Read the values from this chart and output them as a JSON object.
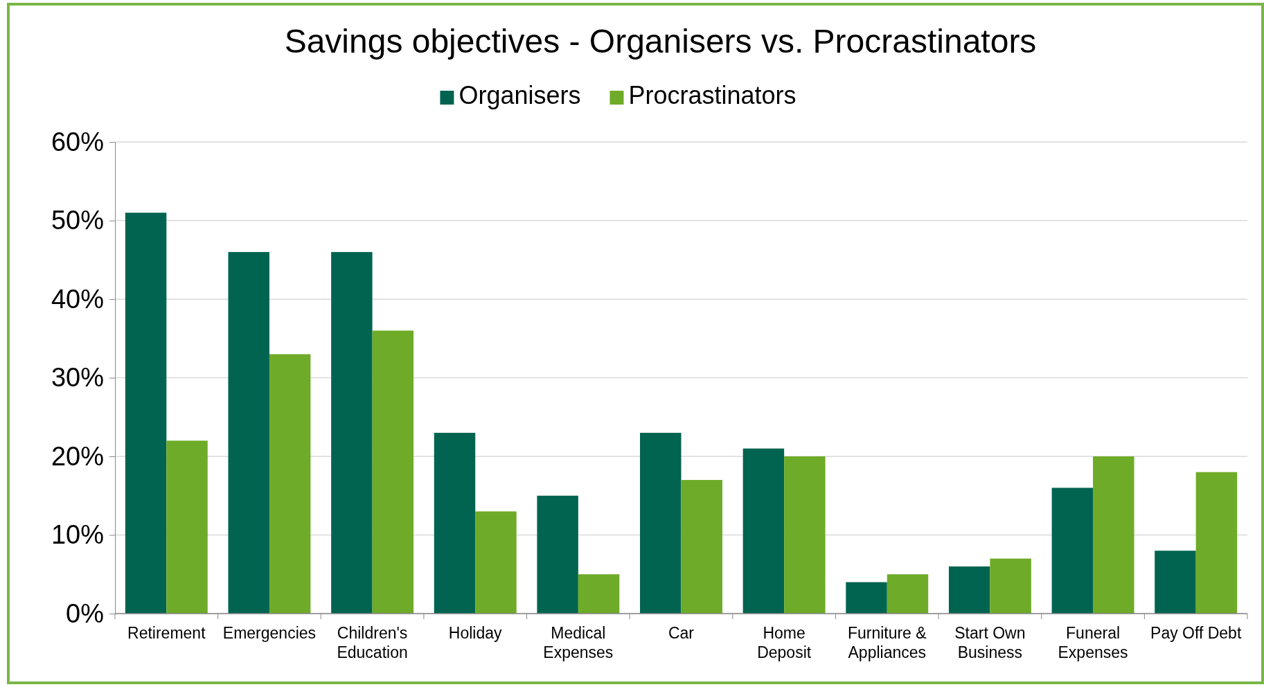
{
  "chart_data": {
    "type": "bar",
    "title": "Savings objectives - Organisers vs. Procrastinators",
    "categories": [
      "Retirement",
      "Emergencies",
      "Children's\nEducation",
      "Holiday",
      "Medical\nExpenses",
      "Car",
      "Home\nDeposit",
      "Furniture &\nAppliances",
      "Start Own\nBusiness",
      "Funeral\nExpenses",
      "Pay Off Debt"
    ],
    "series": [
      {
        "name": "Organisers",
        "color": "#006450",
        "values": [
          51,
          46,
          46,
          23,
          15,
          23,
          21,
          4,
          6,
          16,
          8
        ]
      },
      {
        "name": "Procrastinators",
        "color": "#6eab28",
        "values": [
          22,
          33,
          36,
          13,
          5,
          17,
          20,
          5,
          7,
          20,
          18
        ]
      }
    ],
    "ylim": [
      0,
      60
    ],
    "yticks": [
      {
        "value": 0,
        "label": "0%"
      },
      {
        "value": 10,
        "label": "10%"
      },
      {
        "value": 20,
        "label": "20%"
      },
      {
        "value": 30,
        "label": "30%"
      },
      {
        "value": 40,
        "label": "40%"
      },
      {
        "value": 50,
        "label": "50%"
      },
      {
        "value": 60,
        "label": "60%"
      }
    ],
    "grid": "y",
    "legend": "top"
  }
}
